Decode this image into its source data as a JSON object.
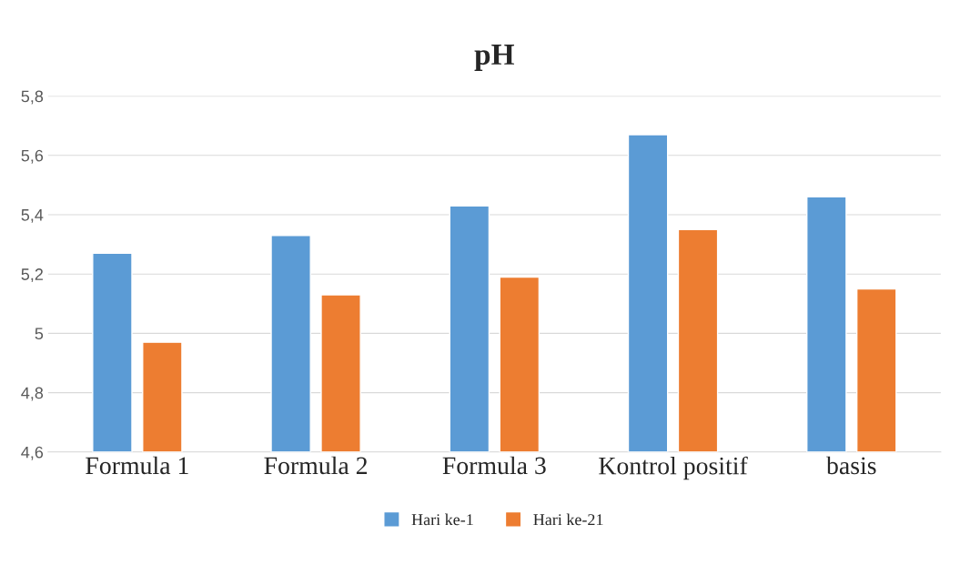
{
  "chart_data": {
    "type": "bar",
    "title": "pH",
    "categories": [
      "Formula 1",
      "Formula 2",
      "Formula 3",
      "Kontrol positif",
      "basis"
    ],
    "series": [
      {
        "name": "Hari ke-1",
        "color": "#5b9bd5",
        "values": [
          5.27,
          5.33,
          5.43,
          5.67,
          5.46
        ]
      },
      {
        "name": "Hari ke-21",
        "color": "#ed7d31",
        "values": [
          4.97,
          5.13,
          5.19,
          5.35,
          5.15
        ]
      }
    ],
    "ylim": [
      4.6,
      5.8
    ],
    "yticks": [
      {
        "value": 4.6,
        "label": "4,6"
      },
      {
        "value": 4.8,
        "label": "4,8"
      },
      5,
      {
        "value": 5.2,
        "label": "5,2"
      },
      {
        "value": 5.4,
        "label": "5,4"
      },
      {
        "value": 5.6,
        "label": "5,6"
      },
      {
        "value": 5.8,
        "label": "5,8"
      }
    ],
    "grid": "y",
    "legend": "bottom"
  }
}
